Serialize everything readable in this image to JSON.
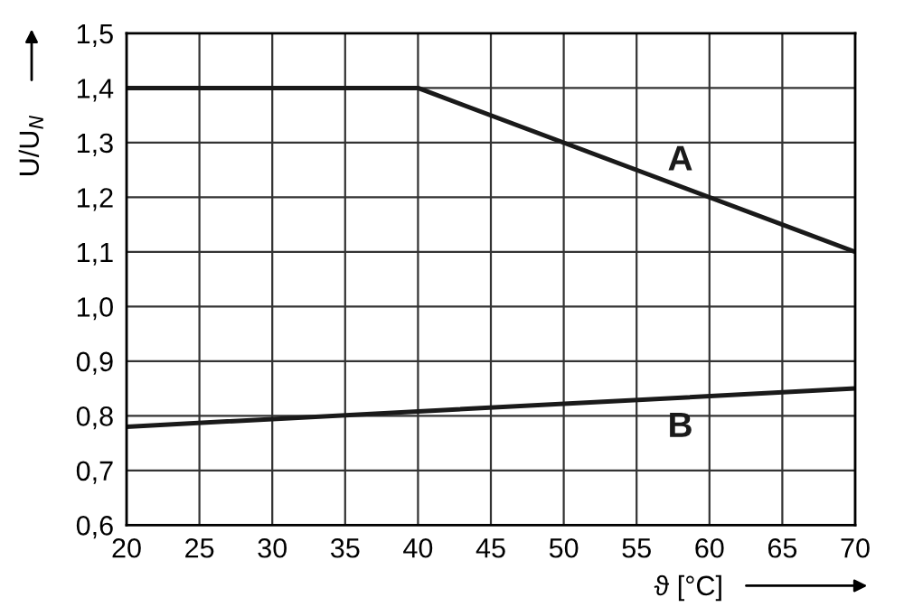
{
  "chart_data": {
    "type": "line",
    "xlabel": "ϑ [°C]",
    "ylabel": "U/U$_{N}$",
    "series": [
      {
        "name": "A",
        "color": "#1a1a1a",
        "x": [
          20,
          40,
          70
        ],
        "values": [
          1.4,
          1.4,
          1.1
        ]
      },
      {
        "name": "B",
        "color": "#1a1a1a",
        "x": [
          20,
          70
        ],
        "values": [
          0.78,
          0.85
        ]
      }
    ],
    "xlim": [
      20,
      70
    ],
    "xticks": [
      20,
      25,
      30,
      35,
      40,
      45,
      50,
      55,
      60,
      65,
      70
    ],
    "ylim": [
      0.6,
      1.5
    ],
    "yticks": [
      {
        "value": 0.6,
        "label": "0,6"
      },
      {
        "value": 0.7,
        "label": "0,7"
      },
      {
        "value": 0.8,
        "label": "0,8"
      },
      {
        "value": 0.9,
        "label": "0,9"
      },
      {
        "value": 1.0,
        "label": "1,0"
      },
      {
        "value": 1.1,
        "label": "1,1"
      },
      {
        "value": 1.2,
        "label": "1,2"
      },
      {
        "value": 1.3,
        "label": "1,3"
      },
      {
        "value": 1.4,
        "label": "1,4"
      },
      {
        "value": 1.5,
        "label": "1,5"
      }
    ],
    "grid": true,
    "legend": false,
    "marker": "none",
    "line_style": "solid"
  }
}
